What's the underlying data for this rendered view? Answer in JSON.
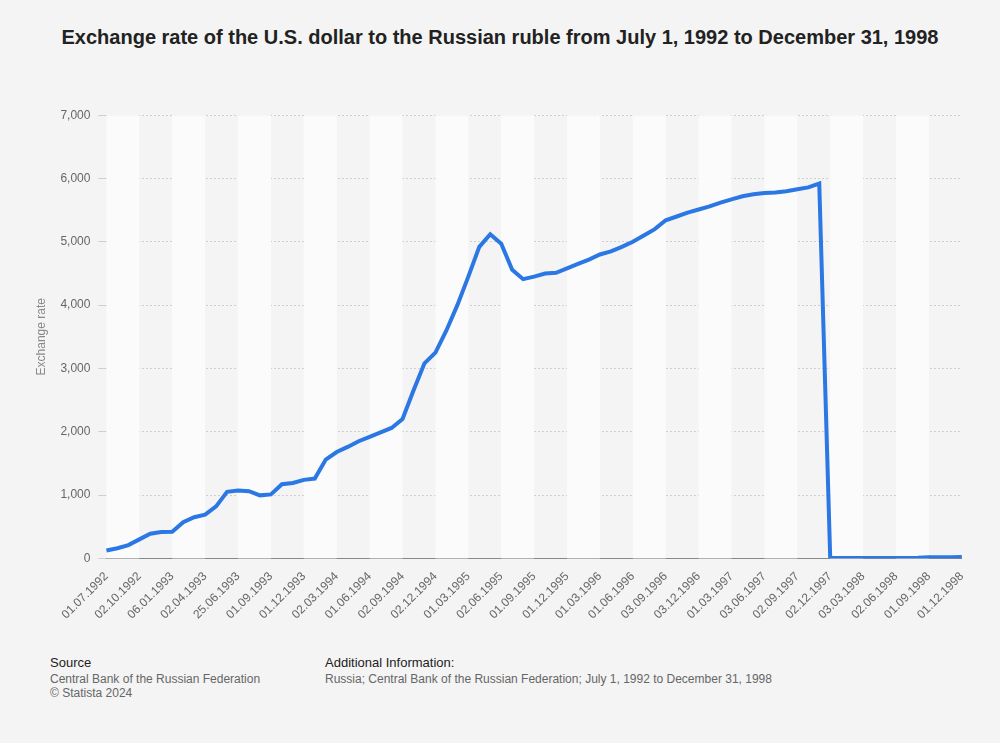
{
  "chart_data": {
    "type": "line",
    "title": "Exchange rate of the U.S. dollar to the Russian ruble from July 1, 1992 to December 31, 1998",
    "y_label": "Exchange rate",
    "color": "#2b78e4",
    "grid": true,
    "categories": [
      "01.07.1992",
      null,
      null,
      "02.10.1992",
      null,
      null,
      "06.01.1993",
      null,
      null,
      "02.04.1993",
      null,
      null,
      "25.06.1993",
      null,
      null,
      "01.09.1993",
      null,
      null,
      "01.12.1993",
      null,
      null,
      "02.03.1994",
      null,
      null,
      "01.06.1994",
      null,
      null,
      "02.09.1994",
      null,
      null,
      "02.12.1994",
      null,
      null,
      "01.03.1995",
      null,
      null,
      "02.06.1995",
      null,
      null,
      "01.09.1995",
      null,
      null,
      "01.12.1995",
      null,
      null,
      "01.03.1996",
      null,
      null,
      "01.06.1996",
      null,
      null,
      "03.09.1996",
      null,
      null,
      "03.12.1996",
      null,
      null,
      "01.03.1997",
      null,
      null,
      "03.06.1997",
      null,
      null,
      "02.09.1997",
      null,
      null,
      "02.12.1997",
      null,
      null,
      "03.03.1998",
      null,
      null,
      "02.06.1998",
      null,
      null,
      "01.09.1998",
      null,
      null,
      "01.12.1998"
    ],
    "values": [
      125,
      160,
      210,
      300,
      390,
      415,
      420,
      570,
      650,
      690,
      820,
      1050,
      1070,
      1060,
      995,
      1010,
      1170,
      1190,
      1240,
      1260,
      1560,
      1680,
      1760,
      1850,
      1920,
      1990,
      2060,
      2200,
      2650,
      3080,
      3250,
      3600,
      4000,
      4450,
      4920,
      5120,
      4970,
      4560,
      4410,
      4450,
      4500,
      4510,
      4580,
      4650,
      4720,
      4800,
      4850,
      4920,
      5000,
      5100,
      5200,
      5340,
      5400,
      5460,
      5510,
      5560,
      5620,
      5670,
      5720,
      5750,
      5770,
      5780,
      5800,
      5830,
      5860,
      5920,
      5.96,
      6.0,
      6.05,
      6.1,
      6.13,
      6.16,
      6.2,
      6.2,
      7.9,
      16,
      15.9,
      16.4,
      20.6
    ],
    "ylim": [
      0,
      7000
    ],
    "yticks": [
      0,
      {
        "value": 1000,
        "label": "1,000"
      },
      {
        "value": 2000,
        "label": "2,000"
      },
      {
        "value": 3000,
        "label": "3,000"
      },
      {
        "value": 4000,
        "label": "4,000"
      },
      {
        "value": 5000,
        "label": "5,000"
      },
      {
        "value": 6000,
        "label": "6,000"
      },
      {
        "value": 7000,
        "label": "7,000"
      }
    ],
    "footer": {
      "source_label": "Source",
      "source": [
        "Central Bank of the Russian Federation",
        "© Statista 2024"
      ],
      "info_label": "Additional Information:",
      "info": "Russia; Central Bank of the Russian Federation; July 1, 1992 to December 31, 1998"
    }
  }
}
